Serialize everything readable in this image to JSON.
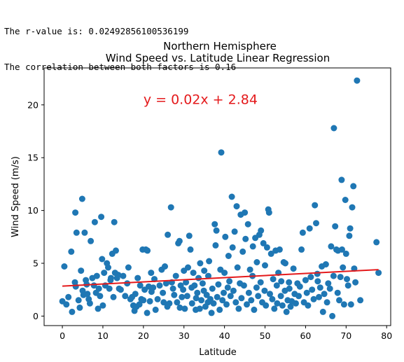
{
  "output_lines": [
    "The r-value is: 0.02492856100536199",
    "The correlation between both factors is 0.16"
  ],
  "chart_data": {
    "type": "scatter",
    "title": [
      "Northern Hemisphere",
      "Wind Speed vs. Latitude Linear Regression"
    ],
    "xlabel": "Latitude",
    "ylabel": "Wind Speed (m/s)",
    "xlim": [
      -4.5,
      81
    ],
    "ylim": [
      -0.9,
      23.5
    ],
    "xticks": [
      0,
      10,
      20,
      30,
      40,
      50,
      60,
      70,
      80
    ],
    "yticks": [
      0,
      5,
      10,
      15,
      20
    ],
    "grid": false,
    "point_color": "#1f77b4",
    "line_color": "#e41a1c",
    "regression": {
      "equation": "y = 0.02x + 2.84",
      "slope": 0.02,
      "intercept": 2.84,
      "x_range": [
        0,
        78
      ],
      "label_position": [
        20,
        20.1
      ]
    },
    "series": [
      {
        "points": [
          [
            0,
            1.4
          ],
          [
            0.5,
            4.7
          ],
          [
            1,
            1.1
          ],
          [
            1.5,
            1.8
          ],
          [
            2.2,
            6.1
          ],
          [
            2.4,
            0.4
          ],
          [
            3.1,
            3.2
          ],
          [
            3.2,
            9.8
          ],
          [
            3.3,
            2.8
          ],
          [
            3.5,
            7.9
          ],
          [
            4,
            1.5
          ],
          [
            4.3,
            0.8
          ],
          [
            4.6,
            4.3
          ],
          [
            4.9,
            11.1
          ],
          [
            5,
            2.4
          ],
          [
            5.2,
            2
          ],
          [
            5.5,
            7.9
          ],
          [
            5.8,
            3.4
          ],
          [
            6,
            3
          ],
          [
            6.2,
            2.1
          ],
          [
            6.5,
            1.6
          ],
          [
            6.8,
            1.2
          ],
          [
            7,
            7.1
          ],
          [
            7.4,
            3.6
          ],
          [
            7.8,
            2.9
          ],
          [
            8,
            8.9
          ],
          [
            8.3,
            2.2
          ],
          [
            8.5,
            3.8
          ],
          [
            8.8,
            0.7
          ],
          [
            9,
            2.6
          ],
          [
            9.3,
            1.9
          ],
          [
            9.6,
            9.4
          ],
          [
            9.8,
            5.4
          ],
          [
            10,
            1
          ],
          [
            10.3,
            4.1
          ],
          [
            10.6,
            2.9
          ],
          [
            11,
            5
          ],
          [
            11.3,
            4.6
          ],
          [
            11.6,
            2.6
          ],
          [
            11.9,
            3.4
          ],
          [
            12,
            3.6
          ],
          [
            12.3,
            5.9
          ],
          [
            12.6,
            1.8
          ],
          [
            12.8,
            8.9
          ],
          [
            13,
            4.1
          ],
          [
            13.2,
            6.2
          ],
          [
            13.5,
            3.6
          ],
          [
            13.8,
            3.9
          ],
          [
            14,
            2.6
          ],
          [
            14.4,
            2.5
          ],
          [
            15,
            3.8
          ],
          [
            15.5,
            1.9
          ],
          [
            16,
            3.1
          ],
          [
            16.3,
            4.6
          ],
          [
            16.8,
            1.6
          ],
          [
            17.2,
            1.8
          ],
          [
            17.5,
            1
          ],
          [
            17.8,
            0.5
          ],
          [
            18,
            2.1
          ],
          [
            18.3,
            0.9
          ],
          [
            18.6,
            3.6
          ],
          [
            19,
            1.1
          ],
          [
            19.2,
            2.9
          ],
          [
            19.5,
            1.6
          ],
          [
            19.8,
            6.3
          ],
          [
            20,
            1.5
          ],
          [
            20.3,
            2.5
          ],
          [
            20.6,
            6.3
          ],
          [
            20.9,
            0.3
          ],
          [
            21,
            6.2
          ],
          [
            21.3,
            2.8
          ],
          [
            21.6,
            1.4
          ],
          [
            21.9,
            4.1
          ],
          [
            22,
            2.3
          ],
          [
            22.4,
            2.7
          ],
          [
            22.7,
            3.5
          ],
          [
            23,
            0.6
          ],
          [
            23.5,
            1.6
          ],
          [
            24,
            2.9
          ],
          [
            24.5,
            4.4
          ],
          [
            24.8,
            2.2
          ],
          [
            25,
            1.3
          ],
          [
            25.3,
            4.7
          ],
          [
            25.6,
            3.1
          ],
          [
            25.9,
            0.9
          ],
          [
            26,
            7.7
          ],
          [
            26.4,
            1.2
          ],
          [
            26.8,
            10.3
          ],
          [
            27,
            3.2
          ],
          [
            27.3,
            2.6
          ],
          [
            27.6,
            2
          ],
          [
            28,
            3.8
          ],
          [
            28.3,
            1.3
          ],
          [
            28.6,
            6.9
          ],
          [
            28.9,
            7.1
          ],
          [
            29,
            0.8
          ],
          [
            29.2,
            2.9
          ],
          [
            29.5,
            1.8
          ],
          [
            29.8,
            2.5
          ],
          [
            30,
            4.3
          ],
          [
            30.2,
            0.7
          ],
          [
            30.5,
            3.2
          ],
          [
            30.8,
            1.9
          ],
          [
            31,
            4.6
          ],
          [
            31.3,
            7.6
          ],
          [
            31.6,
            6.3
          ],
          [
            31.9,
            2.7
          ],
          [
            32,
            1.2
          ],
          [
            32.3,
            4.1
          ],
          [
            32.6,
            2.9
          ],
          [
            32.9,
            0.6
          ],
          [
            33,
            1.7
          ],
          [
            33.3,
            2.2
          ],
          [
            33.6,
            3.6
          ],
          [
            33.9,
            0.7
          ],
          [
            34,
            5
          ],
          [
            34.3,
            1.5
          ],
          [
            34.6,
            3.1
          ],
          [
            34.9,
            2.4
          ],
          [
            35,
            4.3
          ],
          [
            35.3,
            0.9
          ],
          [
            35.6,
            2
          ],
          [
            35.9,
            1.3
          ],
          [
            36,
            3.8
          ],
          [
            36.2,
            5.2
          ],
          [
            36.5,
            1.6
          ],
          [
            36.8,
            0.3
          ],
          [
            37,
            2.6
          ],
          [
            37.3,
            1.2
          ],
          [
            37.6,
            8.7
          ],
          [
            37.8,
            6.7
          ],
          [
            38,
            8.1
          ],
          [
            38.2,
            1.8
          ],
          [
            38.5,
            3
          ],
          [
            38.8,
            0.6
          ],
          [
            39,
            4.4
          ],
          [
            39.2,
            15.5
          ],
          [
            39.5,
            1.5
          ],
          [
            39.8,
            2.2
          ],
          [
            40,
            4.1
          ],
          [
            40.2,
            7.5
          ],
          [
            40.5,
            1.1
          ],
          [
            40.8,
            2.7
          ],
          [
            41,
            5.7
          ],
          [
            41.2,
            3.3
          ],
          [
            41.5,
            1.9
          ],
          [
            41.8,
            11.3
          ],
          [
            42,
            6.5
          ],
          [
            42.2,
            2.4
          ],
          [
            42.5,
            8
          ],
          [
            42.8,
            1.3
          ],
          [
            43,
            10.4
          ],
          [
            43.2,
            4.6
          ],
          [
            43.5,
            0.7
          ],
          [
            43.8,
            3.1
          ],
          [
            44,
            9.6
          ],
          [
            44.2,
            1.7
          ],
          [
            44.5,
            6.1
          ],
          [
            44.8,
            2.9
          ],
          [
            45,
            9.8
          ],
          [
            45.2,
            7.3
          ],
          [
            45.5,
            1.1
          ],
          [
            45.8,
            8.7
          ],
          [
            46,
            2.2
          ],
          [
            46.3,
            4.4
          ],
          [
            46.6,
            1.5
          ],
          [
            46.9,
            3.8
          ],
          [
            47,
            6.6
          ],
          [
            47.3,
            0.6
          ],
          [
            47.6,
            7.4
          ],
          [
            47.9,
            2.7
          ],
          [
            48,
            5.1
          ],
          [
            48.3,
            1.9
          ],
          [
            48.6,
            7.7
          ],
          [
            48.9,
            3.2
          ],
          [
            49,
            8.1
          ],
          [
            49.3,
            1.3
          ],
          [
            49.6,
            6.9
          ],
          [
            49.9,
            2.4
          ],
          [
            50,
            4.8
          ],
          [
            50.2,
            1
          ],
          [
            50.5,
            6.5
          ],
          [
            50.8,
            10.1
          ],
          [
            51,
            9.8
          ],
          [
            51.2,
            2.1
          ],
          [
            51.5,
            5.9
          ],
          [
            51.8,
            1.6
          ],
          [
            52,
            3.5
          ],
          [
            52.3,
            0.7
          ],
          [
            52.6,
            6.2
          ],
          [
            52.9,
            2.9
          ],
          [
            53,
            1.2
          ],
          [
            53.3,
            4.1
          ],
          [
            53.6,
            6.3
          ],
          [
            53.9,
            1.9
          ],
          [
            54,
            3.3
          ],
          [
            54.3,
            1
          ],
          [
            54.6,
            5.1
          ],
          [
            54.9,
            2.4
          ],
          [
            55,
            5
          ],
          [
            55.3,
            0.4
          ],
          [
            55.6,
            1.5
          ],
          [
            55.9,
            3.2
          ],
          [
            56,
            2.6
          ],
          [
            56.3,
            0.9
          ],
          [
            56.6,
            1.4
          ],
          [
            57,
            4.5
          ],
          [
            57.3,
            2.1
          ],
          [
            57.6,
            1.2
          ],
          [
            58,
            3.1
          ],
          [
            58.3,
            1.9
          ],
          [
            58.6,
            2.8
          ],
          [
            59,
            6.3
          ],
          [
            59.3,
            7.9
          ],
          [
            59.6,
            1.3
          ],
          [
            60,
            3.4
          ],
          [
            60.3,
            2.2
          ],
          [
            60.6,
            1
          ],
          [
            61,
            8.3
          ],
          [
            61.3,
            3.7
          ],
          [
            61.6,
            2.5
          ],
          [
            62,
            1.6
          ],
          [
            62.3,
            10.5
          ],
          [
            62.6,
            8.8
          ],
          [
            62.9,
            4
          ],
          [
            63,
            3.3
          ],
          [
            63.3,
            1.8
          ],
          [
            63.6,
            2.7
          ],
          [
            64,
            4.7
          ],
          [
            64.3,
            0.4
          ],
          [
            64.6,
            2.1
          ],
          [
            65,
            4.9
          ],
          [
            65.3,
            1.3
          ],
          [
            65.6,
            3.1
          ],
          [
            66,
            2.6
          ],
          [
            66.3,
            6.6
          ],
          [
            66.6,
            0
          ],
          [
            66.9,
            3.8
          ],
          [
            67,
            17.8
          ],
          [
            67.3,
            8.5
          ],
          [
            67.6,
            6.3
          ],
          [
            67.9,
            2.2
          ],
          [
            68,
            6.2
          ],
          [
            68.3,
            1.5
          ],
          [
            68.6,
            3.7
          ],
          [
            68.9,
            12.9
          ],
          [
            69,
            6.3
          ],
          [
            69.2,
            4.6
          ],
          [
            69.5,
            1.1
          ],
          [
            69.8,
            11
          ],
          [
            70,
            5.9
          ],
          [
            70.2,
            3.5
          ],
          [
            70.5,
            2.9
          ],
          [
            70.8,
            7.6
          ],
          [
            71,
            8.3
          ],
          [
            71.2,
            1.1
          ],
          [
            71.5,
            10.3
          ],
          [
            71.8,
            12.3
          ],
          [
            72,
            4.5
          ],
          [
            72.3,
            3.2
          ],
          [
            72.7,
            22.3
          ],
          [
            73.5,
            1.5
          ],
          [
            77.5,
            7
          ],
          [
            78,
            4.1
          ]
        ]
      }
    ]
  }
}
